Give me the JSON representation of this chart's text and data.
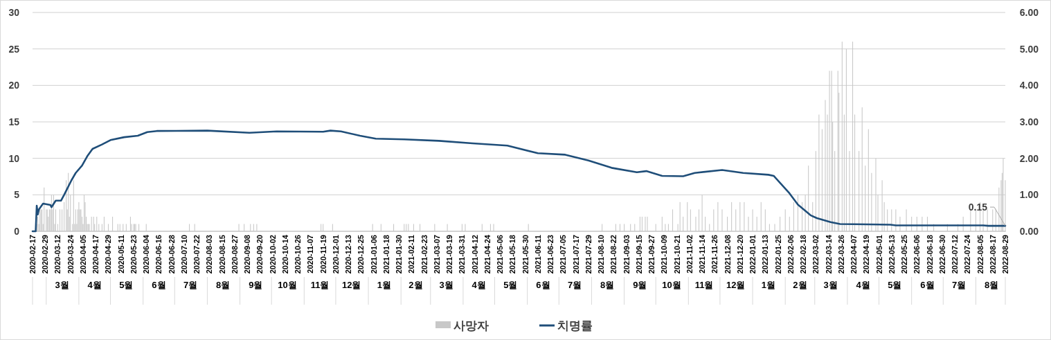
{
  "chart_data": {
    "type": "bar",
    "xlim": [
      "2020-02-17",
      "2022-08-29"
    ],
    "xticks": [
      "2020-02-17",
      "2020-02-29",
      "2020-03-12",
      "2020-03-24",
      "2020-04-05",
      "2020-04-17",
      "2020-04-29",
      "2020-05-11",
      "2020-05-23",
      "2020-06-04",
      "2020-06-16",
      "2020-06-28",
      "2020-07-10",
      "2020-07-22",
      "2020-08-03",
      "2020-08-15",
      "2020-08-27",
      "2020-09-08",
      "2020-09-20",
      "2020-10-02",
      "2020-10-14",
      "2020-10-26",
      "2020-11-07",
      "2020-11-19",
      "2020-12-01",
      "2020-12-13",
      "2020-12-25",
      "2021-01-06",
      "2021-01-18",
      "2021-01-30",
      "2021-02-11",
      "2021-02-23",
      "2021-03-07",
      "2021-03-19",
      "2021-03-31",
      "2021-04-12",
      "2021-04-24",
      "2021-05-06",
      "2021-05-18",
      "2021-05-30",
      "2021-06-11",
      "2021-06-23",
      "2021-07-05",
      "2021-07-17",
      "2021-07-29",
      "2021-08-10",
      "2021-08-22",
      "2021-09-03",
      "2021-09-15",
      "2021-09-27",
      "2021-10-09",
      "2021-10-21",
      "2021-11-02",
      "2021-11-14",
      "2021-11-26",
      "2021-12-08",
      "2021-12-20",
      "2022-01-01",
      "2022-01-13",
      "2022-01-25",
      "2022-02-06",
      "2022-02-18",
      "2022-03-02",
      "2022-03-14",
      "2022-03-26",
      "2022-04-07",
      "2022-04-19",
      "2022-05-01",
      "2022-05-13",
      "2022-05-25",
      "2022-06-06",
      "2022-06-18",
      "2022-06-30",
      "2022-07-12",
      "2022-07-24",
      "2022-08-05",
      "2022-08-17",
      "2022-08-29"
    ],
    "x2lim": [
      "2020-02-17",
      "2022-08-29"
    ],
    "x2ticks": [
      {
        "value": "2020-03-16",
        "label": "3월"
      },
      {
        "value": "2020-04-16",
        "label": "4월"
      },
      {
        "value": "2020-05-16",
        "label": "5월"
      },
      {
        "value": "2020-06-16",
        "label": "6월"
      },
      {
        "value": "2020-07-16",
        "label": "7월"
      },
      {
        "value": "2020-08-16",
        "label": "8월"
      },
      {
        "value": "2020-09-16",
        "label": "9월"
      },
      {
        "value": "2020-10-16",
        "label": "10월"
      },
      {
        "value": "2020-11-16",
        "label": "11월"
      },
      {
        "value": "2020-12-16",
        "label": "12월"
      },
      {
        "value": "2021-01-16",
        "label": "1월"
      },
      {
        "value": "2021-02-15",
        "label": "2월"
      },
      {
        "value": "2021-03-16",
        "label": "3월"
      },
      {
        "value": "2021-04-16",
        "label": "4월"
      },
      {
        "value": "2021-05-16",
        "label": "5월"
      },
      {
        "value": "2021-06-16",
        "label": "6월"
      },
      {
        "value": "2021-07-16",
        "label": "7월"
      },
      {
        "value": "2021-08-16",
        "label": "8월"
      },
      {
        "value": "2021-09-16",
        "label": "9월"
      },
      {
        "value": "2021-10-16",
        "label": "10월"
      },
      {
        "value": "2021-11-16",
        "label": "11월"
      },
      {
        "value": "2021-12-16",
        "label": "12월"
      },
      {
        "value": "2022-01-16",
        "label": "1월"
      },
      {
        "value": "2022-02-15",
        "label": "2월"
      },
      {
        "value": "2022-03-16",
        "label": "3월"
      },
      {
        "value": "2022-04-16",
        "label": "4월"
      },
      {
        "value": "2022-05-16",
        "label": "5월"
      },
      {
        "value": "2022-06-16",
        "label": "6월"
      },
      {
        "value": "2022-07-16",
        "label": "7월"
      },
      {
        "value": "2022-08-16",
        "label": "8월"
      }
    ],
    "ylim": [
      0,
      30
    ],
    "yticks": [
      0,
      5,
      10,
      15,
      20,
      25,
      30
    ],
    "y2lim": [
      0,
      6
    ],
    "y2ticks": [
      {
        "value": 0,
        "label": "0.00"
      },
      {
        "value": 1,
        "label": "1.00"
      },
      {
        "value": 2,
        "label": "2.00"
      },
      {
        "value": 3,
        "label": "3.00"
      },
      {
        "value": 4,
        "label": "4.00"
      },
      {
        "value": 5,
        "label": "5.00"
      },
      {
        "value": 6,
        "label": "6.00"
      }
    ],
    "grid": "y",
    "legend": "bottom",
    "annotations": [
      {
        "text": "0.15",
        "x": "2022-08-29",
        "y": 0.15
      }
    ],
    "series": [
      {
        "name": "사망자",
        "color": "#c8c8c8",
        "x": [
          "2020-02-21",
          "2020-02-22",
          "2020-02-23",
          "2020-02-24",
          "2020-02-25",
          "2020-02-26",
          "2020-02-27",
          "2020-02-28",
          "2020-03-01",
          "2020-03-02",
          "2020-03-03",
          "2020-03-04",
          "2020-03-05",
          "2020-03-06",
          "2020-03-07",
          "2020-03-08",
          "2020-03-09",
          "2020-03-10",
          "2020-03-12",
          "2020-03-14",
          "2020-03-16",
          "2020-03-18",
          "2020-03-20",
          "2020-03-21",
          "2020-03-22",
          "2020-03-23",
          "2020-03-24",
          "2020-03-26",
          "2020-03-27",
          "2020-03-28",
          "2020-03-29",
          "2020-03-30",
          "2020-03-31",
          "2020-04-01",
          "2020-04-02",
          "2020-04-03",
          "2020-04-04",
          "2020-04-05",
          "2020-04-06",
          "2020-04-07",
          "2020-04-08",
          "2020-04-09",
          "2020-04-10",
          "2020-04-11",
          "2020-04-13",
          "2020-04-15",
          "2020-04-16",
          "2020-04-18",
          "2020-04-20",
          "2020-04-23",
          "2020-04-25",
          "2020-04-29",
          "2020-05-03",
          "2020-05-08",
          "2020-05-10",
          "2020-05-13",
          "2020-05-16",
          "2020-05-20",
          "2020-05-21",
          "2020-05-23",
          "2020-05-24",
          "2020-05-25",
          "2020-05-28",
          "2020-06-04",
          "2020-07-15",
          "2020-07-20",
          "2020-08-31",
          "2020-09-05",
          "2020-09-11",
          "2020-09-14",
          "2020-09-17",
          "2020-11-17",
          "2020-11-19",
          "2020-11-28",
          "2021-01-05",
          "2021-01-13",
          "2021-01-25",
          "2021-02-04",
          "2021-02-06",
          "2021-02-08",
          "2021-02-13",
          "2021-02-19",
          "2021-03-05",
          "2021-03-17",
          "2021-03-31",
          "2021-04-03",
          "2021-04-19",
          "2021-04-27",
          "2021-04-30",
          "2021-06-02",
          "2021-08-11",
          "2021-08-24",
          "2021-08-28",
          "2021-09-01",
          "2021-09-07",
          "2021-09-11",
          "2021-09-16",
          "2021-09-18",
          "2021-09-21",
          "2021-09-23",
          "2021-10-01",
          "2021-10-07",
          "2021-10-10",
          "2021-10-13",
          "2021-10-17",
          "2021-10-22",
          "2021-10-24",
          "2021-10-27",
          "2021-10-31",
          "2021-11-03",
          "2021-11-08",
          "2021-11-11",
          "2021-11-14",
          "2021-11-17",
          "2021-11-21",
          "2021-11-25",
          "2021-11-29",
          "2021-12-03",
          "2021-12-08",
          "2021-12-12",
          "2021-12-16",
          "2021-12-20",
          "2021-12-24",
          "2021-12-28",
          "2022-01-01",
          "2022-01-05",
          "2022-01-09",
          "2022-01-13",
          "2022-01-17",
          "2022-01-22",
          "2022-01-27",
          "2022-02-01",
          "2022-02-05",
          "2022-02-09",
          "2022-02-13",
          "2022-02-17",
          "2022-02-20",
          "2022-02-23",
          "2022-02-27",
          "2022-03-02",
          "2022-03-05",
          "2022-03-08",
          "2022-03-11",
          "2022-03-13",
          "2022-03-15",
          "2022-03-17",
          "2022-03-18",
          "2022-03-20",
          "2022-03-23",
          "2022-03-24",
          "2022-03-27",
          "2022-03-29",
          "2022-03-31",
          "2022-04-03",
          "2022-04-06",
          "2022-04-08",
          "2022-04-12",
          "2022-04-15",
          "2022-04-18",
          "2022-04-21",
          "2022-04-24",
          "2022-04-28",
          "2022-04-30",
          "2022-05-04",
          "2022-05-06",
          "2022-05-09",
          "2022-05-13",
          "2022-05-17",
          "2022-05-21",
          "2022-05-27",
          "2022-06-01",
          "2022-06-06",
          "2022-06-11",
          "2022-06-16",
          "2022-06-22",
          "2022-07-05",
          "2022-07-15",
          "2022-07-20",
          "2022-07-27",
          "2022-08-01",
          "2022-08-05",
          "2022-08-08",
          "2022-08-12",
          "2022-08-17",
          "2022-08-20",
          "2022-08-23",
          "2022-08-25",
          "2022-08-26",
          "2022-08-27",
          "2022-08-29"
        ],
        "values": [
          1,
          2,
          1,
          3,
          3,
          3,
          1,
          6,
          3,
          3,
          2,
          3,
          3,
          5,
          3,
          5,
          1,
          3,
          1,
          3,
          3,
          4,
          7,
          3,
          8,
          2,
          5,
          1,
          7,
          1,
          3,
          1,
          3,
          4,
          3,
          3,
          2,
          1,
          5,
          4,
          2,
          1,
          1,
          1,
          2,
          2,
          1,
          2,
          1,
          1,
          2,
          1,
          2,
          1,
          1,
          1,
          1,
          2,
          1,
          1,
          1,
          1,
          1,
          1,
          1,
          1,
          1,
          1,
          1,
          1,
          1,
          1,
          1,
          1,
          1,
          1,
          1,
          1,
          1,
          1,
          1,
          1,
          1,
          1,
          1,
          1,
          1,
          1,
          1,
          1,
          1,
          1,
          1,
          1,
          1,
          1,
          2,
          2,
          2,
          2,
          1,
          2,
          1,
          1,
          3,
          1,
          4,
          2,
          4,
          3,
          2,
          3,
          5,
          2,
          1,
          3,
          4,
          3,
          2,
          4,
          3,
          4,
          4,
          2,
          3,
          2,
          4,
          3,
          1,
          1,
          2,
          3,
          2,
          4,
          5,
          4,
          5,
          9,
          4,
          11,
          16,
          14,
          18,
          16,
          22,
          22,
          15,
          11,
          22,
          19,
          26,
          16,
          25,
          11,
          26,
          16,
          11,
          17,
          9,
          14,
          8,
          10,
          5,
          7,
          4,
          3,
          3,
          3,
          2,
          3,
          2,
          2,
          2,
          2,
          1,
          1,
          1,
          2,
          3,
          3,
          4,
          3,
          3,
          3,
          3,
          6,
          7,
          8,
          10,
          7
        ]
      },
      {
        "name": "치명률",
        "type": "line",
        "axis": "y2",
        "color": "#1f4e79",
        "x": [
          "2020-02-17",
          "2020-02-20",
          "2020-02-21",
          "2020-02-22",
          "2020-02-23",
          "2020-02-27",
          "2020-03-05",
          "2020-03-06",
          "2020-03-10",
          "2020-03-15",
          "2020-03-18",
          "2020-03-25",
          "2020-03-29",
          "2020-04-04",
          "2020-04-09",
          "2020-04-14",
          "2020-04-23",
          "2020-05-01",
          "2020-05-14",
          "2020-05-27",
          "2020-06-05",
          "2020-06-14",
          "2020-08-01",
          "2020-09-10",
          "2020-10-06",
          "2020-11-19",
          "2020-11-26",
          "2020-12-06",
          "2020-12-24",
          "2021-01-08",
          "2021-02-04",
          "2021-03-09",
          "2021-04-10",
          "2021-05-13",
          "2021-06-11",
          "2021-07-07",
          "2021-07-29",
          "2021-08-20",
          "2021-09-13",
          "2021-09-22",
          "2021-10-07",
          "2021-10-27",
          "2021-11-07",
          "2021-12-03",
          "2021-12-23",
          "2022-01-16",
          "2022-01-21",
          "2022-02-05",
          "2022-02-13",
          "2022-02-25",
          "2022-03-03",
          "2022-03-16",
          "2022-03-25",
          "2022-05-12",
          "2022-05-17",
          "2022-08-08",
          "2022-08-13",
          "2022-08-29"
        ],
        "values": [
          0,
          0,
          0.7,
          0.46,
          0.6,
          0.76,
          0.72,
          0.66,
          0.84,
          0.84,
          1.0,
          1.4,
          1.6,
          1.8,
          2.06,
          2.26,
          2.38,
          2.5,
          2.58,
          2.62,
          2.72,
          2.75,
          2.76,
          2.7,
          2.74,
          2.73,
          2.76,
          2.74,
          2.62,
          2.54,
          2.52,
          2.48,
          2.41,
          2.35,
          2.14,
          2.1,
          1.94,
          1.74,
          1.62,
          1.65,
          1.52,
          1.51,
          1.6,
          1.68,
          1.6,
          1.55,
          1.52,
          1.04,
          0.73,
          0.44,
          0.36,
          0.25,
          0.2,
          0.18,
          0.16,
          0.16,
          0.15,
          0.15
        ]
      }
    ]
  }
}
